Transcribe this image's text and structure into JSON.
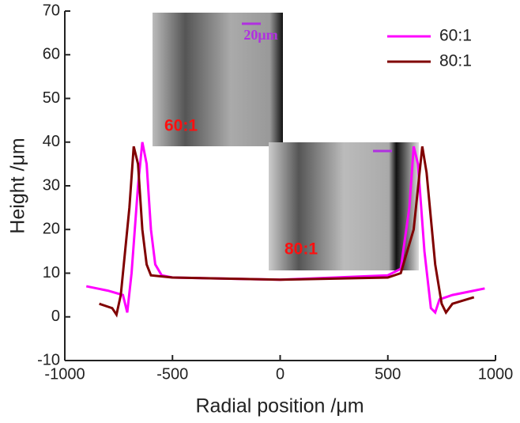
{
  "chart_data": {
    "type": "line",
    "x_label": "Radial position /μm",
    "y_label": "Height /μm",
    "xlim": [
      -1000,
      1000
    ],
    "xticks": [
      -1000,
      -500,
      0,
      500,
      1000
    ],
    "ylim": [
      -10,
      70
    ],
    "yticks": [
      -10,
      0,
      10,
      20,
      30,
      40,
      50,
      60,
      70
    ],
    "legend": "upper right",
    "annotations": [
      "20μm",
      "60:1",
      "80:1"
    ],
    "series": [
      {
        "name": "60:1",
        "color": "#ff00ff",
        "x": [
          -900,
          -800,
          -730,
          -710,
          -690,
          -660,
          -640,
          -620,
          -600,
          -580,
          -550,
          -500,
          0,
          500,
          560,
          600,
          620,
          640,
          670,
          700,
          720,
          740,
          800,
          900,
          950
        ],
        "values": [
          7,
          6,
          5,
          1,
          10,
          30,
          40,
          35,
          20,
          12,
          9.5,
          9,
          8.5,
          9.5,
          11,
          25,
          39,
          35,
          15,
          2,
          1,
          4,
          5,
          6,
          6.5
        ]
      },
      {
        "name": "80:1",
        "color": "#800000",
        "x": [
          -840,
          -780,
          -760,
          -740,
          -700,
          -680,
          -660,
          -640,
          -620,
          -600,
          -500,
          0,
          500,
          560,
          620,
          660,
          680,
          720,
          750,
          770,
          800,
          900
        ],
        "values": [
          3,
          2,
          0.5,
          5,
          25,
          39,
          35,
          20,
          12,
          9.5,
          9,
          8.5,
          9,
          10,
          20,
          39,
          33,
          12,
          3,
          1,
          3,
          4.5
        ]
      }
    ]
  }
}
